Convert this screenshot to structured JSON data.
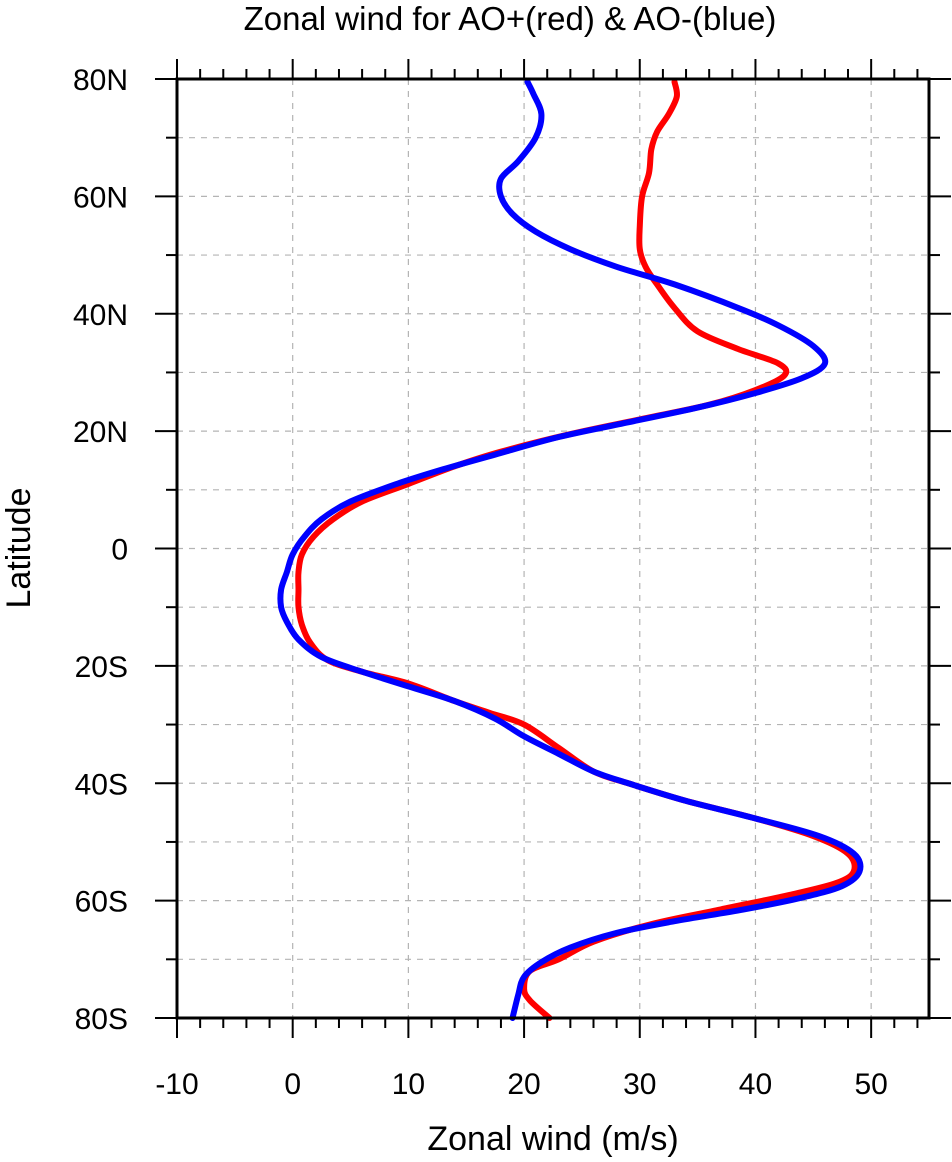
{
  "chart_data": {
    "type": "line",
    "title": "Zonal wind for AO+(red) & AO-(blue)",
    "xlabel": "Zonal wind (m/s)",
    "ylabel": "Latitude",
    "xlim": [
      -10,
      55
    ],
    "ylim": [
      -80,
      80
    ],
    "x_ticks": [
      -10,
      0,
      10,
      20,
      30,
      40,
      50
    ],
    "x_tick_labels": [
      "-10",
      "0",
      "10",
      "20",
      "30",
      "40",
      "50"
    ],
    "y_ticks": [
      -80,
      -60,
      -40,
      -20,
      0,
      20,
      40,
      60,
      80
    ],
    "y_tick_labels": [
      "80S",
      "60S",
      "40S",
      "20S",
      "0",
      "20N",
      "40N",
      "60N",
      "80N"
    ],
    "grid": true,
    "legend": "none",
    "series": [
      {
        "color": "#ff0000",
        "points": [
          [
            22.2,
            -80
          ],
          [
            20.5,
            -77
          ],
          [
            20.0,
            -75
          ],
          [
            20.5,
            -72
          ],
          [
            23.0,
            -70
          ],
          [
            26.0,
            -67
          ],
          [
            31.0,
            -64
          ],
          [
            37.0,
            -61.5
          ],
          [
            43.0,
            -59
          ],
          [
            47.0,
            -57
          ],
          [
            48.5,
            -55
          ],
          [
            48.0,
            -52
          ],
          [
            45.0,
            -49
          ],
          [
            40.0,
            -46
          ],
          [
            34.0,
            -43
          ],
          [
            29.0,
            -40
          ],
          [
            26.0,
            -38
          ],
          [
            23.0,
            -34
          ],
          [
            20.0,
            -30
          ],
          [
            17.0,
            -28
          ],
          [
            14.0,
            -26
          ],
          [
            10.0,
            -23
          ],
          [
            6.0,
            -21
          ],
          [
            3.0,
            -19
          ],
          [
            1.5,
            -16
          ],
          [
            0.8,
            -13
          ],
          [
            0.5,
            -10
          ],
          [
            0.5,
            -7
          ],
          [
            0.5,
            -4
          ],
          [
            0.8,
            -1
          ],
          [
            1.8,
            2
          ],
          [
            3.5,
            5
          ],
          [
            6.0,
            8
          ],
          [
            10.0,
            11
          ],
          [
            14.0,
            14
          ],
          [
            18.0,
            16.5
          ],
          [
            24.0,
            19.5
          ],
          [
            30.0,
            22
          ],
          [
            36.0,
            24.5
          ],
          [
            40.0,
            27
          ],
          [
            42.5,
            29.5
          ],
          [
            42.0,
            31.5
          ],
          [
            38.5,
            34
          ],
          [
            35.0,
            37
          ],
          [
            33.0,
            41
          ],
          [
            31.5,
            45
          ],
          [
            30.5,
            48
          ],
          [
            30.0,
            51
          ],
          [
            30.0,
            55
          ],
          [
            30.2,
            60
          ],
          [
            30.8,
            64
          ],
          [
            31.0,
            68
          ],
          [
            31.5,
            71
          ],
          [
            32.5,
            74
          ],
          [
            33.2,
            77
          ],
          [
            33.0,
            79.5
          ]
        ]
      },
      {
        "color": "#0000ff",
        "points": [
          [
            19.0,
            -80
          ],
          [
            19.5,
            -76
          ],
          [
            20.0,
            -73
          ],
          [
            21.5,
            -70.5
          ],
          [
            24.0,
            -68
          ],
          [
            28.0,
            -65.5
          ],
          [
            33.0,
            -63.5
          ],
          [
            39.0,
            -61.5
          ],
          [
            44.0,
            -59.5
          ],
          [
            47.5,
            -57.5
          ],
          [
            49.0,
            -55
          ],
          [
            48.5,
            -52
          ],
          [
            45.5,
            -49
          ],
          [
            40.0,
            -46
          ],
          [
            34.0,
            -43
          ],
          [
            29.0,
            -40
          ],
          [
            26.0,
            -38
          ],
          [
            23.0,
            -35
          ],
          [
            20.0,
            -32
          ],
          [
            17.5,
            -29
          ],
          [
            14.0,
            -26
          ],
          [
            10.0,
            -23.5
          ],
          [
            6.0,
            -21
          ],
          [
            2.5,
            -18.5
          ],
          [
            0.5,
            -15.5
          ],
          [
            -0.5,
            -12.5
          ],
          [
            -1.0,
            -10
          ],
          [
            -1.0,
            -7
          ],
          [
            -0.5,
            -4
          ],
          [
            0.0,
            -1
          ],
          [
            1.0,
            2
          ],
          [
            2.5,
            5
          ],
          [
            5.0,
            8
          ],
          [
            9.0,
            11
          ],
          [
            13.0,
            13.5
          ],
          [
            17.5,
            16
          ],
          [
            23.0,
            19
          ],
          [
            29.0,
            21.5
          ],
          [
            35.0,
            24
          ],
          [
            40.0,
            26.5
          ],
          [
            44.0,
            29
          ],
          [
            46.0,
            31.5
          ],
          [
            45.0,
            34.5
          ],
          [
            42.0,
            38
          ],
          [
            38.5,
            41
          ],
          [
            33.0,
            45
          ],
          [
            28.0,
            48
          ],
          [
            24.0,
            51
          ],
          [
            21.0,
            54
          ],
          [
            19.0,
            57
          ],
          [
            18.0,
            60
          ],
          [
            18.0,
            63
          ],
          [
            19.5,
            66
          ],
          [
            21.0,
            70
          ],
          [
            21.5,
            74
          ],
          [
            20.8,
            77.5
          ],
          [
            20.3,
            79.5
          ]
        ]
      }
    ]
  }
}
